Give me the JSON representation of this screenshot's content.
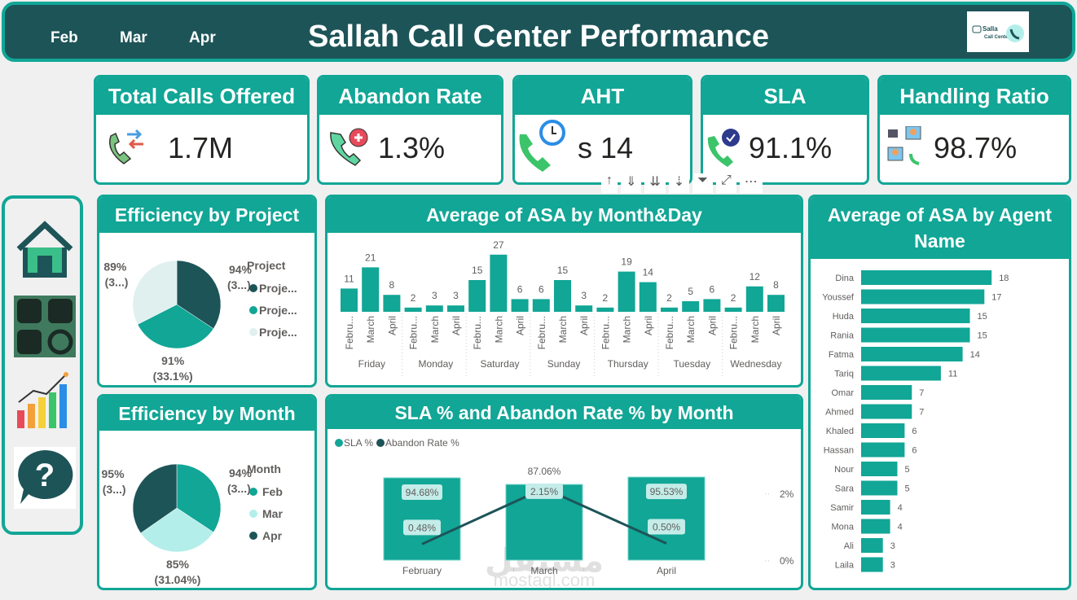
{
  "colors": {
    "teal": "#11a696",
    "dark": "#1d5458",
    "light": "#b4eeea",
    "pale": "#dff0ef"
  },
  "header": {
    "title": "Sallah Call Center Performance",
    "months": [
      "Feb",
      "Mar",
      "Apr"
    ],
    "logo_text": "Salla Call Center"
  },
  "kpis": [
    {
      "title": "Total Calls Offered",
      "value": "1.7M",
      "icon": "phone-transfer-icon"
    },
    {
      "title": "Abandon Rate",
      "value": "1.3%",
      "icon": "phone-alert-icon"
    },
    {
      "title": "AHT",
      "value": "s 14",
      "icon": "clock-phone-icon"
    },
    {
      "title": "SLA",
      "value": "91.1%",
      "icon": "phone-check-icon"
    },
    {
      "title": "Handling Ratio",
      "value": "98.7%",
      "icon": "agents-network-icon"
    }
  ],
  "nav": [
    {
      "icon": "home-icon"
    },
    {
      "icon": "grid-icon"
    },
    {
      "icon": "bar-chart-icon"
    },
    {
      "icon": "help-icon"
    }
  ],
  "toolbar": {
    "items": [
      "↑",
      "⇓",
      "⇊",
      "⇣",
      "⏷",
      "⤢",
      "⋯"
    ]
  },
  "chart_data": [
    {
      "type": "pie",
      "title": "Efficiency by Project",
      "legend_title": "Project",
      "legend": [
        "Proje...",
        "Proje...",
        "Proje..."
      ],
      "values": [
        94,
        91,
        89
      ],
      "labels": [
        [
          "94%",
          "(3...)"
        ],
        [
          "91%",
          "(33.1%)"
        ],
        [
          "89%",
          "(3...)"
        ]
      ],
      "colors": [
        "#1d5458",
        "#11a696",
        "#dff0ef"
      ]
    },
    {
      "type": "pie",
      "title": "Efficiency by Month",
      "legend_title": "Month",
      "legend": [
        "Feb",
        "Mar",
        "Apr"
      ],
      "values": [
        94,
        85,
        95
      ],
      "labels": [
        [
          "94%",
          "(3...)"
        ],
        [
          "85%",
          "(31.04%)"
        ],
        [
          "95%",
          "(3...)"
        ]
      ],
      "colors": [
        "#11a696",
        "#b4eeea",
        "#1d5458"
      ]
    },
    {
      "type": "bar",
      "title": "Average of ASA by Month&Day",
      "groups": [
        "Friday",
        "Monday",
        "Saturday",
        "Sunday",
        "Thursday",
        "Tuesday",
        "Wednesday"
      ],
      "subcategories": [
        "Febru...",
        "March",
        "April"
      ],
      "values": [
        [
          11,
          21,
          8
        ],
        [
          2,
          3,
          3
        ],
        [
          15,
          27,
          6
        ],
        [
          6,
          15,
          3
        ],
        [
          2,
          19,
          14
        ],
        [
          2,
          5,
          6
        ],
        [
          2,
          12,
          8
        ]
      ]
    },
    {
      "type": "bar+line",
      "title": "SLA % and Abandon Rate % by Month",
      "categories": [
        "February",
        "March",
        "April"
      ],
      "series": [
        {
          "name": "SLA %",
          "values": [
            94.68,
            87.06,
            95.53
          ],
          "labels": [
            "94.68%",
            "87.06%",
            "95.53%"
          ]
        },
        {
          "name": "Abandon Rate %",
          "values": [
            0.48,
            2.15,
            0.5
          ],
          "labels": [
            "0.48%",
            "2.15%",
            "0.50%"
          ]
        }
      ],
      "right_axis_ticks": [
        "2%",
        "0%"
      ],
      "watermark": [
        "مستقل",
        "mostaql.com"
      ]
    },
    {
      "type": "bar",
      "orientation": "horizontal",
      "title": "Average of ASA by Agent Name",
      "categories": [
        "Dina",
        "Youssef",
        "Huda",
        "Rania",
        "Fatma",
        "Tariq",
        "Omar",
        "Ahmed",
        "Khaled",
        "Hassan",
        "Nour",
        "Sara",
        "Samir",
        "Mona",
        "Ali",
        "Laila"
      ],
      "values": [
        18,
        17,
        15,
        15,
        14,
        11,
        7,
        7,
        6,
        6,
        5,
        5,
        4,
        4,
        3,
        3
      ]
    }
  ]
}
